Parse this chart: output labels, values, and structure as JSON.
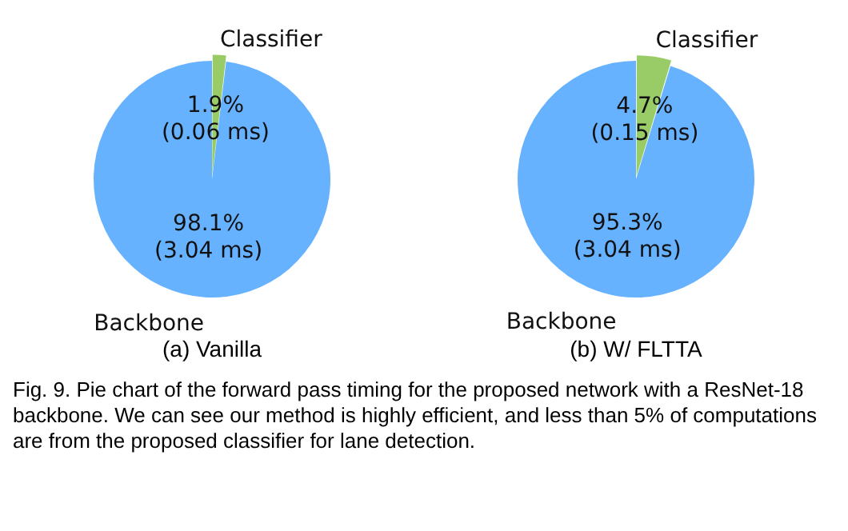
{
  "chart_data": [
    {
      "type": "pie",
      "xlabel": "(a) Vanilla",
      "categories": [
        "Classifier",
        "Backbone"
      ],
      "values": [
        1.9,
        98.1
      ],
      "colors": [
        "#99cc66",
        "#66b2ff"
      ],
      "value_labels": [
        "1.9%\n(0.06 ms)",
        "98.1%\n(3.04 ms)"
      ],
      "legend": false
    },
    {
      "type": "pie",
      "xlabel": "(b) W/ FLTTA",
      "categories": [
        "Classifier",
        "Backbone"
      ],
      "values": [
        4.7,
        95.3
      ],
      "colors": [
        "#99cc66",
        "#66b2ff"
      ],
      "value_labels": [
        "4.7%\n(0.15 ms)",
        "95.3%\n(3.04 ms)"
      ],
      "legend": false,
      "annotations": [
        "Fig. 9. Pie chart of the forward pass timing for the proposed network with a ResNet-18 backbone. We can see our method is highly efficient, and less than 5% of computations are from the proposed classifier for lane detection."
      ]
    }
  ]
}
